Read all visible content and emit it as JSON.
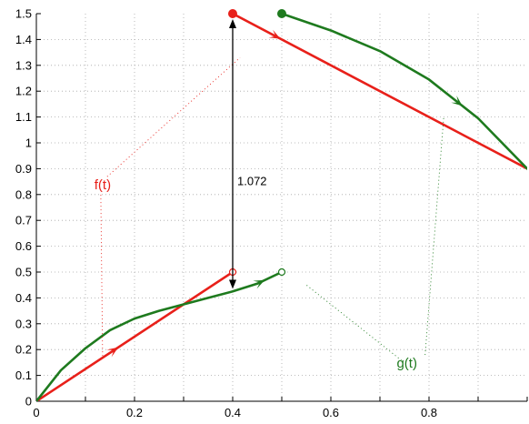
{
  "chart_data": {
    "type": "line",
    "title": "",
    "xlabel": "",
    "ylabel": "",
    "xlim": [
      0,
      1
    ],
    "ylim": [
      0,
      1.5
    ],
    "grid": true,
    "x_ticks": [
      0,
      0.1,
      0.2,
      0.3,
      0.4,
      0.5,
      0.6,
      0.7,
      0.8,
      0.9,
      1.0
    ],
    "x_tick_labels": [
      "0",
      "",
      "0.2",
      "",
      "0.4",
      "",
      "0.6",
      "",
      "0.8",
      "",
      ""
    ],
    "y_ticks": [
      0,
      0.1,
      0.2,
      0.3,
      0.4,
      0.5,
      0.6,
      0.7,
      0.8,
      0.9,
      1.0,
      1.1,
      1.2,
      1.3,
      1.4,
      1.5
    ],
    "y_tick_labels": [
      "0",
      "0.1",
      "0.2",
      "0.3",
      "0.4",
      "0.5",
      "0.6",
      "0.7",
      "0.8",
      "0.9",
      "1",
      "1.1",
      "1.2",
      "1.3",
      "1.4",
      "1.5"
    ],
    "series": [
      {
        "name": "f(t)",
        "color": "#e8201a",
        "segments": [
          {
            "x": [
              0,
              0.4
            ],
            "y": [
              0,
              0.5
            ],
            "start_marker": "none",
            "end_marker": "open"
          },
          {
            "x": [
              0.4,
              1.0
            ],
            "y": [
              1.5,
              0.9
            ],
            "start_marker": "filled",
            "end_marker": "none"
          }
        ]
      },
      {
        "name": "g(t)",
        "color": "#1e7a1e",
        "segments": [
          {
            "x": [
              0,
              0.05,
              0.1,
              0.15,
              0.2,
              0.25,
              0.3,
              0.35,
              0.4,
              0.45,
              0.5
            ],
            "y": [
              0,
              0.12,
              0.205,
              0.275,
              0.32,
              0.35,
              0.375,
              0.4,
              0.425,
              0.455,
              0.5
            ],
            "start_marker": "none",
            "end_marker": "open"
          },
          {
            "x": [
              0.5,
              0.6,
              0.7,
              0.8,
              0.9,
              1.0
            ],
            "y": [
              1.5,
              1.435,
              1.355,
              1.245,
              1.095,
              0.9
            ],
            "start_marker": "filled",
            "end_marker": "none"
          }
        ]
      }
    ],
    "annotations": {
      "f_label": "f(t)",
      "g_label": "g(t)",
      "distance_label": "1.072",
      "distance_from": [
        0.4,
        1.5
      ],
      "distance_to": [
        0.4,
        0.428
      ],
      "f_label_pos": [
        0.135,
        0.82
      ],
      "g_label_pos": [
        0.755,
        0.13
      ]
    }
  }
}
